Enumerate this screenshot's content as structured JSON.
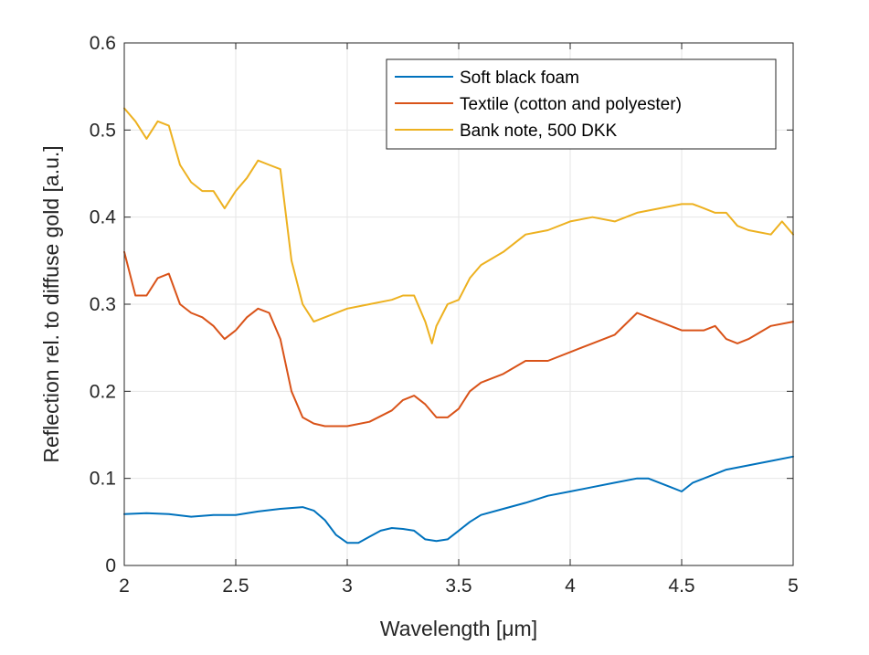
{
  "chart_data": {
    "type": "line",
    "title": "",
    "xlabel": "Wavelength [μm]",
    "ylabel": "Reflection rel. to diffuse gold [a.u.]",
    "xlim": [
      2,
      5
    ],
    "ylim": [
      0,
      0.6
    ],
    "xticks": [
      2,
      2.5,
      3,
      3.5,
      4,
      4.5,
      5
    ],
    "xtick_labels": [
      "2",
      "2.5",
      "3",
      "3.5",
      "4",
      "4.5",
      "5"
    ],
    "yticks": [
      0,
      0.1,
      0.2,
      0.3,
      0.4,
      0.5,
      0.6
    ],
    "ytick_labels": [
      "0",
      "0.1",
      "0.2",
      "0.3",
      "0.4",
      "0.5",
      "0.6"
    ],
    "grid": true,
    "legend_position": "top-right",
    "series": [
      {
        "name": "Soft black foam",
        "color": "#0072BD",
        "x": [
          2.0,
          2.1,
          2.2,
          2.3,
          2.4,
          2.5,
          2.6,
          2.7,
          2.8,
          2.85,
          2.9,
          2.95,
          3.0,
          3.05,
          3.1,
          3.15,
          3.2,
          3.25,
          3.3,
          3.35,
          3.4,
          3.45,
          3.5,
          3.55,
          3.6,
          3.7,
          3.8,
          3.9,
          4.0,
          4.1,
          4.2,
          4.3,
          4.35,
          4.4,
          4.45,
          4.5,
          4.55,
          4.6,
          4.7,
          4.8,
          4.9,
          5.0
        ],
        "y": [
          0.059,
          0.06,
          0.059,
          0.056,
          0.058,
          0.058,
          0.062,
          0.065,
          0.067,
          0.063,
          0.052,
          0.035,
          0.026,
          0.026,
          0.033,
          0.04,
          0.043,
          0.042,
          0.04,
          0.03,
          0.028,
          0.03,
          0.04,
          0.05,
          0.058,
          0.065,
          0.072,
          0.08,
          0.085,
          0.09,
          0.095,
          0.1,
          0.1,
          0.095,
          0.09,
          0.085,
          0.095,
          0.1,
          0.11,
          0.115,
          0.12,
          0.125
        ]
      },
      {
        "name": "Textile (cotton and polyester)",
        "color": "#D95319",
        "x": [
          2.0,
          2.02,
          2.05,
          2.1,
          2.15,
          2.2,
          2.25,
          2.3,
          2.35,
          2.4,
          2.45,
          2.5,
          2.55,
          2.6,
          2.65,
          2.7,
          2.75,
          2.8,
          2.85,
          2.9,
          3.0,
          3.1,
          3.2,
          3.25,
          3.3,
          3.35,
          3.4,
          3.45,
          3.5,
          3.55,
          3.6,
          3.7,
          3.8,
          3.9,
          4.0,
          4.1,
          4.2,
          4.3,
          4.35,
          4.4,
          4.5,
          4.6,
          4.65,
          4.7,
          4.75,
          4.8,
          4.9,
          5.0
        ],
        "y": [
          0.36,
          0.34,
          0.31,
          0.31,
          0.33,
          0.335,
          0.3,
          0.29,
          0.285,
          0.275,
          0.26,
          0.27,
          0.285,
          0.295,
          0.29,
          0.26,
          0.2,
          0.17,
          0.163,
          0.16,
          0.16,
          0.165,
          0.178,
          0.19,
          0.195,
          0.185,
          0.17,
          0.17,
          0.18,
          0.2,
          0.21,
          0.22,
          0.235,
          0.235,
          0.245,
          0.255,
          0.265,
          0.29,
          0.285,
          0.28,
          0.27,
          0.27,
          0.275,
          0.26,
          0.255,
          0.26,
          0.275,
          0.28
        ]
      },
      {
        "name": "Bank note, 500 DKK",
        "color": "#EDB120",
        "x": [
          2.0,
          2.05,
          2.1,
          2.15,
          2.2,
          2.25,
          2.3,
          2.35,
          2.4,
          2.45,
          2.5,
          2.55,
          2.6,
          2.65,
          2.7,
          2.75,
          2.8,
          2.85,
          2.9,
          3.0,
          3.1,
          3.2,
          3.25,
          3.3,
          3.35,
          3.38,
          3.4,
          3.45,
          3.5,
          3.55,
          3.6,
          3.7,
          3.8,
          3.9,
          4.0,
          4.1,
          4.2,
          4.3,
          4.4,
          4.5,
          4.55,
          4.6,
          4.65,
          4.7,
          4.75,
          4.8,
          4.9,
          4.95,
          5.0
        ],
        "y": [
          0.525,
          0.51,
          0.49,
          0.51,
          0.505,
          0.46,
          0.44,
          0.43,
          0.43,
          0.41,
          0.43,
          0.445,
          0.465,
          0.46,
          0.455,
          0.35,
          0.3,
          0.28,
          0.285,
          0.295,
          0.3,
          0.305,
          0.31,
          0.31,
          0.28,
          0.255,
          0.275,
          0.3,
          0.305,
          0.33,
          0.345,
          0.36,
          0.38,
          0.385,
          0.395,
          0.4,
          0.395,
          0.405,
          0.41,
          0.415,
          0.415,
          0.41,
          0.405,
          0.405,
          0.39,
          0.385,
          0.38,
          0.395,
          0.38
        ]
      }
    ]
  }
}
